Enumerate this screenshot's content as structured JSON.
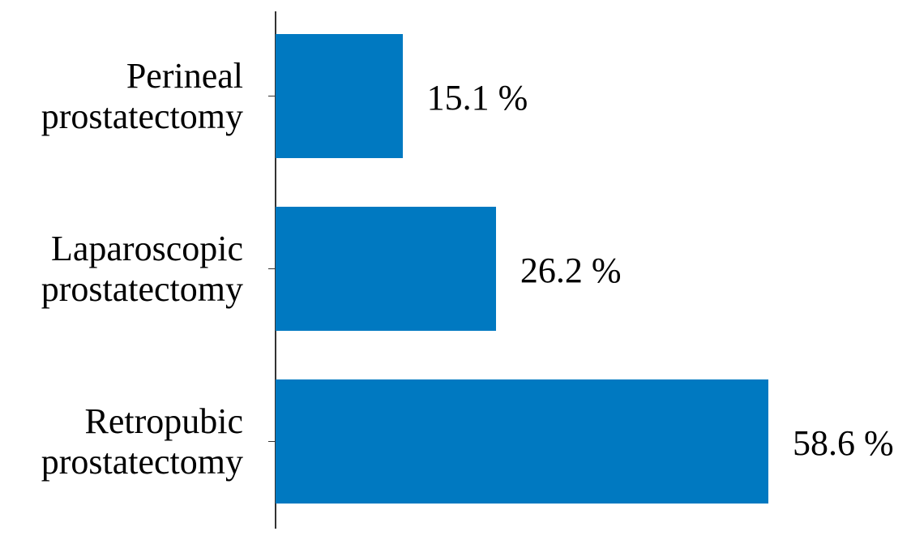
{
  "chart_data": {
    "type": "bar",
    "orientation": "horizontal",
    "categories": [
      "Perineal prostatectomy",
      "Laparoscopic prostatectomy",
      "Retropubic prostatectomy"
    ],
    "values": [
      15.1,
      26.2,
      58.6
    ],
    "value_labels": [
      "15.1 %",
      "26.2 %",
      "58.6 %"
    ],
    "color": "#0079c1"
  }
}
